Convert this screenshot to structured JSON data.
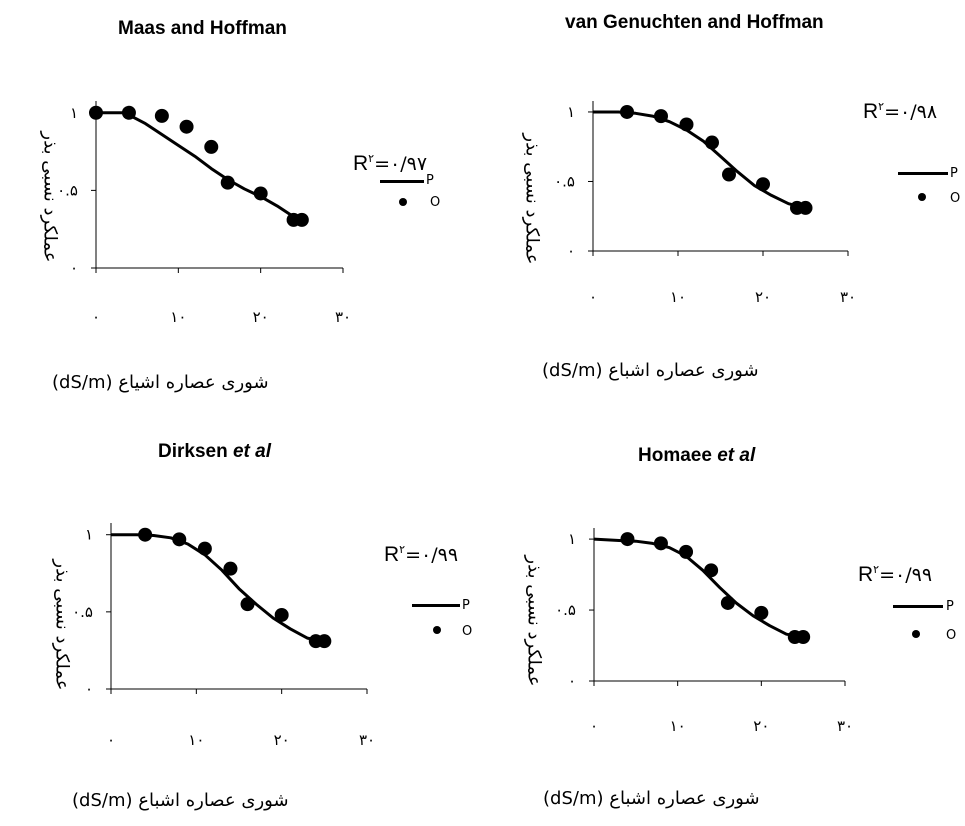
{
  "chart_data": [
    {
      "type": "scatter",
      "title": "Maas and Hoffman",
      "ylabel": "عملکرد نسبی بذر",
      "xlabel": "شوری عصاره اشیاع (dS/m)",
      "r2_label": "R",
      "r2_sup": "۲",
      "r2_value": "=۰/۹۷",
      "xlim": [
        0,
        30
      ],
      "ylim": [
        0,
        1.05
      ],
      "xticks": [
        "۰",
        "۱۰",
        "۲۰",
        "۳۰"
      ],
      "yticks": [
        "۰",
        "۰.۵",
        "۱"
      ],
      "legend": [
        "P",
        "O"
      ],
      "series": [
        {
          "name": "P",
          "x": [
            0,
            3.5,
            6,
            8,
            10,
            12,
            14,
            16,
            18,
            20,
            22,
            24,
            24.8
          ],
          "y": [
            1.0,
            1.0,
            0.93,
            0.86,
            0.79,
            0.72,
            0.64,
            0.57,
            0.51,
            0.46,
            0.4,
            0.33,
            0.31
          ]
        },
        {
          "name": "O",
          "x": [
            0,
            4,
            8,
            11,
            14,
            16,
            20,
            24,
            25
          ],
          "y": [
            1.0,
            1.0,
            0.98,
            0.91,
            0.78,
            0.55,
            0.48,
            0.31,
            0.31
          ]
        }
      ]
    },
    {
      "type": "scatter",
      "title": "van Genuchten and Hoffman",
      "ylabel": "عملکرد نسبی بذر",
      "xlabel": "شوری عصاره اشباع (dS/m)",
      "r2_label": "R",
      "r2_sup": "۲",
      "r2_value": "=۰/۹۸",
      "xlim": [
        0,
        30
      ],
      "ylim": [
        0,
        1.05
      ],
      "xticks": [
        "۰",
        "۱۰",
        "۲۰",
        "۳۰"
      ],
      "yticks": [
        "۰",
        "۰.۵",
        "۱"
      ],
      "legend": [
        "P",
        "O"
      ],
      "series": [
        {
          "name": "P",
          "x": [
            0,
            3,
            5,
            7,
            9,
            11,
            13,
            15,
            17,
            19,
            21,
            23,
            25
          ],
          "y": [
            1.0,
            1.0,
            0.99,
            0.97,
            0.93,
            0.87,
            0.79,
            0.68,
            0.57,
            0.47,
            0.4,
            0.34,
            0.31
          ]
        },
        {
          "name": "O",
          "x": [
            4,
            8,
            11,
            14,
            16,
            20,
            24,
            25
          ],
          "y": [
            1.0,
            0.97,
            0.91,
            0.78,
            0.55,
            0.48,
            0.31,
            0.31
          ]
        }
      ]
    },
    {
      "type": "scatter",
      "title": "Dirksen ",
      "title_italic": "et al",
      "ylabel": "عملکرد نسبی بذر",
      "xlabel": "شوری عصاره اشباع (dS/m)",
      "r2_label": "R",
      "r2_sup": "۲",
      "r2_value": "=۰/۹۹",
      "xlim": [
        0,
        30
      ],
      "ylim": [
        0,
        1.05
      ],
      "xticks": [
        "۰",
        "۱۰",
        "۲۰",
        "۳۰"
      ],
      "yticks": [
        "۰",
        "۰.۵",
        "۱"
      ],
      "legend": [
        "P",
        "O"
      ],
      "series": [
        {
          "name": "P",
          "x": [
            0,
            3,
            5,
            7,
            9,
            11,
            13,
            15,
            17,
            19,
            21,
            23,
            25
          ],
          "y": [
            1.0,
            1.0,
            0.995,
            0.98,
            0.94,
            0.87,
            0.77,
            0.65,
            0.55,
            0.46,
            0.39,
            0.33,
            0.31
          ]
        },
        {
          "name": "O",
          "x": [
            4,
            8,
            11,
            14,
            16,
            20,
            24,
            25
          ],
          "y": [
            1.0,
            0.97,
            0.91,
            0.78,
            0.55,
            0.48,
            0.31,
            0.31
          ]
        }
      ]
    },
    {
      "type": "scatter",
      "title": "Homaee ",
      "title_italic": "et al",
      "ylabel": "عملکرد نسبی بذر",
      "xlabel": "شوری عصاره اشباع (dS/m)",
      "r2_label": "R",
      "r2_sup": "۲",
      "r2_value": "=۰/۹۹",
      "xlim": [
        0,
        30
      ],
      "ylim": [
        0,
        1.05
      ],
      "xticks": [
        "۰",
        "۱۰",
        "۲۰",
        "۳۰"
      ],
      "yticks": [
        "۰",
        "۰.۵",
        "۱"
      ],
      "legend": [
        "P",
        "O"
      ],
      "series": [
        {
          "name": "P",
          "x": [
            0,
            3,
            5,
            7,
            9,
            11,
            13,
            15,
            17,
            19,
            21,
            23,
            25
          ],
          "y": [
            1.0,
            0.99,
            0.985,
            0.97,
            0.94,
            0.88,
            0.78,
            0.66,
            0.55,
            0.46,
            0.39,
            0.33,
            0.31
          ]
        },
        {
          "name": "O",
          "x": [
            4,
            8,
            11,
            14,
            16,
            20,
            24,
            25
          ],
          "y": [
            1.0,
            0.97,
            0.91,
            0.78,
            0.55,
            0.48,
            0.31,
            0.31
          ]
        }
      ]
    }
  ]
}
